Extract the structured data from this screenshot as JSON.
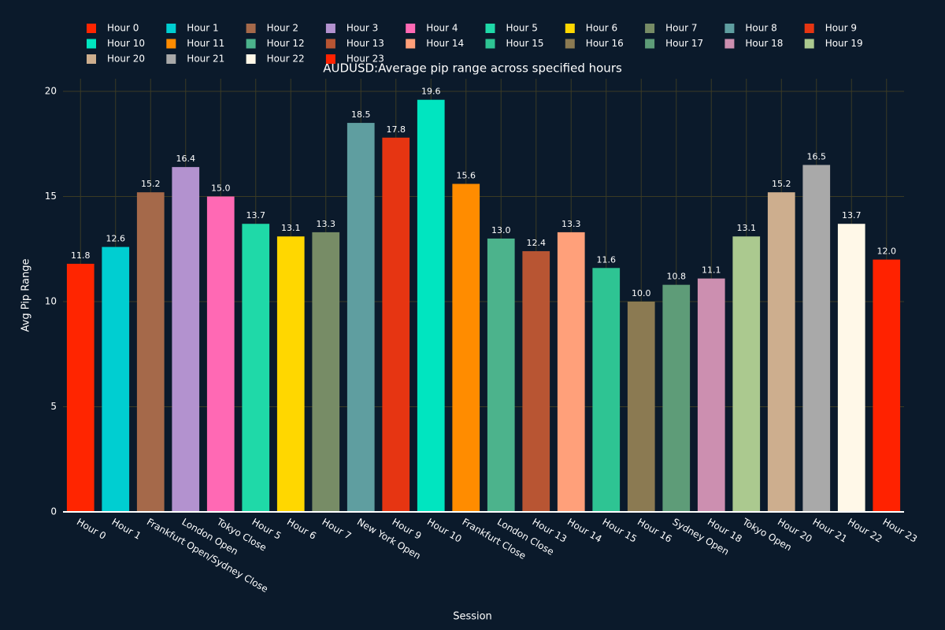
{
  "chart_data": {
    "type": "bar",
    "title": "AUDUSD:Average pip range across specified hours",
    "xlabel": "Session",
    "ylabel": "Avg Pip Range",
    "ylim": [
      0,
      20.6
    ],
    "yticks": [
      0,
      5,
      10,
      15,
      20
    ],
    "grid": true,
    "legend": "top",
    "series": [
      {
        "name": "Hour 0",
        "color": "#ff2500",
        "x": [
          "Hour 0"
        ],
        "values": [
          11.8
        ],
        "value_labels": [
          "11.8"
        ]
      },
      {
        "name": "Hour 1",
        "color": "#00ced1",
        "x": [
          "Hour 1"
        ],
        "values": [
          12.6
        ],
        "value_labels": [
          "12.6"
        ]
      },
      {
        "name": "Hour 2",
        "color": "#a5694a",
        "x": [
          "Frankfurt Open/Sydney Close"
        ],
        "values": [
          15.2
        ],
        "value_labels": [
          "15.2"
        ]
      },
      {
        "name": "Hour 3",
        "color": "#b392cf",
        "x": [
          "London Open"
        ],
        "values": [
          16.4
        ],
        "value_labels": [
          "16.4"
        ]
      },
      {
        "name": "Hour 4",
        "color": "#ff69b4",
        "x": [
          "Tokyo Close"
        ],
        "values": [
          15.0
        ],
        "value_labels": [
          "15.0"
        ]
      },
      {
        "name": "Hour 5",
        "color": "#1fd9a8",
        "x": [
          "Hour 5"
        ],
        "values": [
          13.7
        ],
        "value_labels": [
          "13.7"
        ]
      },
      {
        "name": "Hour 6",
        "color": "#ffd700",
        "x": [
          "Hour 6"
        ],
        "values": [
          13.1
        ],
        "value_labels": [
          "13.1"
        ]
      },
      {
        "name": "Hour 7",
        "color": "#778c66",
        "x": [
          "Hour 7"
        ],
        "values": [
          13.3
        ],
        "value_labels": [
          "13.3"
        ]
      },
      {
        "name": "Hour 8",
        "color": "#5f9ea0",
        "x": [
          "New York Open"
        ],
        "values": [
          18.5
        ],
        "value_labels": [
          "18.5"
        ]
      },
      {
        "name": "Hour 9",
        "color": "#e63512",
        "x": [
          "Hour 9"
        ],
        "values": [
          17.8
        ],
        "value_labels": [
          "17.8"
        ]
      },
      {
        "name": "Hour 10",
        "color": "#00e5c0",
        "x": [
          "Hour 10"
        ],
        "values": [
          19.6
        ],
        "value_labels": [
          "19.6"
        ]
      },
      {
        "name": "Hour 11",
        "color": "#ff8c00",
        "x": [
          "Frankfurt Close"
        ],
        "values": [
          15.6
        ],
        "value_labels": [
          "15.6"
        ]
      },
      {
        "name": "Hour 12",
        "color": "#4cb38c",
        "x": [
          "London Close"
        ],
        "values": [
          13.0
        ],
        "value_labels": [
          "13.0"
        ]
      },
      {
        "name": "Hour 13",
        "color": "#b85533",
        "x": [
          "Hour 13"
        ],
        "values": [
          12.4
        ],
        "value_labels": [
          "12.4"
        ]
      },
      {
        "name": "Hour 14",
        "color": "#ffa07a",
        "x": [
          "Hour 14"
        ],
        "values": [
          13.3
        ],
        "value_labels": [
          "13.3"
        ]
      },
      {
        "name": "Hour 15",
        "color": "#2ec493",
        "x": [
          "Hour 15"
        ],
        "values": [
          11.6
        ],
        "value_labels": [
          "11.6"
        ]
      },
      {
        "name": "Hour 16",
        "color": "#8b7a52",
        "x": [
          "Hour 16"
        ],
        "values": [
          10.0
        ],
        "value_labels": [
          "10.0"
        ]
      },
      {
        "name": "Hour 17",
        "color": "#5e9c78",
        "x": [
          "Sydney Open"
        ],
        "values": [
          10.8
        ],
        "value_labels": [
          "10.8"
        ]
      },
      {
        "name": "Hour 18",
        "color": "#cc8fb0",
        "x": [
          "Hour 18"
        ],
        "values": [
          11.1
        ],
        "value_labels": [
          "11.1"
        ]
      },
      {
        "name": "Hour 19",
        "color": "#abc98f",
        "x": [
          "Tokyo Open"
        ],
        "values": [
          13.1
        ],
        "value_labels": [
          "13.1"
        ]
      },
      {
        "name": "Hour 20",
        "color": "#cdae8e",
        "x": [
          "Hour 20"
        ],
        "values": [
          15.2
        ],
        "value_labels": [
          "15.2"
        ]
      },
      {
        "name": "Hour 21",
        "color": "#a9a9a9",
        "x": [
          "Hour 21"
        ],
        "values": [
          16.5
        ],
        "value_labels": [
          "16.5"
        ]
      },
      {
        "name": "Hour 22",
        "color": "#fff8e8",
        "x": [
          "Hour 22"
        ],
        "values": [
          13.7
        ],
        "value_labels": [
          "13.7"
        ]
      },
      {
        "name": "Hour 23",
        "color": "#ff2200",
        "x": [
          "Hour 23"
        ],
        "values": [
          12.0
        ],
        "value_labels": [
          "12.0"
        ]
      }
    ]
  }
}
